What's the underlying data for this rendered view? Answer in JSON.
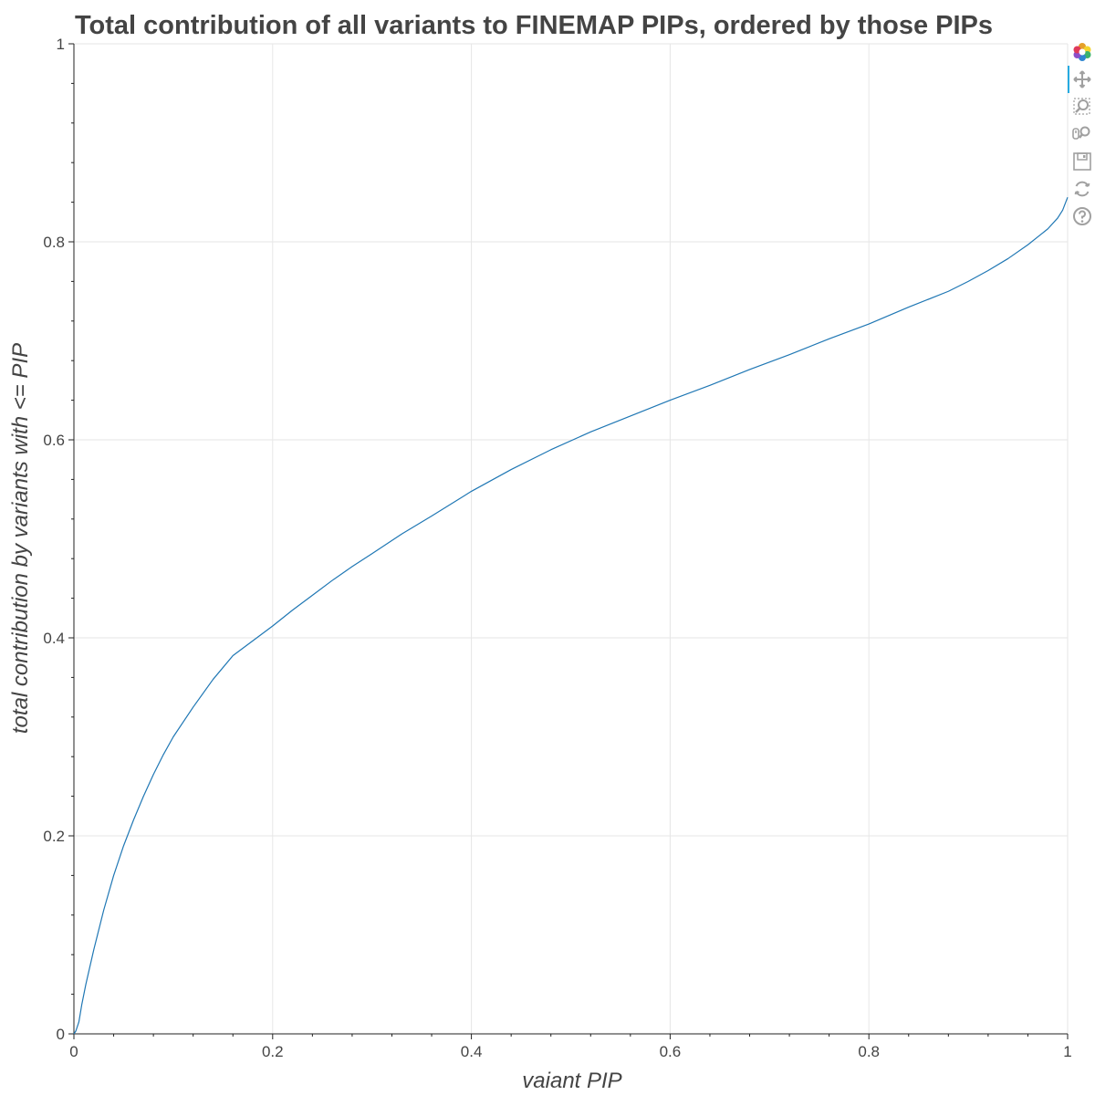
{
  "chart_data": {
    "type": "line",
    "title": "Total contribution of all variants to FINEMAP PIPs, ordered by those PIPs",
    "xlabel": "vaiant PIP",
    "ylabel": "total contribution by variants with <= PIP",
    "xlim": [
      0,
      1
    ],
    "ylim": [
      0,
      1
    ],
    "x_ticks": [
      "0",
      "0.2",
      "0.4",
      "0.6",
      "0.8",
      "1"
    ],
    "y_ticks": [
      "0",
      "0.2",
      "0.4",
      "0.6",
      "0.8",
      "1"
    ],
    "grid": true,
    "series": [
      {
        "color": "#1f77b4",
        "x": [
          0,
          0.002,
          0.005,
          0.008,
          0.012,
          0.02,
          0.03,
          0.04,
          0.05,
          0.06,
          0.07,
          0.08,
          0.09,
          0.1,
          0.12,
          0.14,
          0.16,
          0.18,
          0.2,
          0.22,
          0.24,
          0.26,
          0.28,
          0.3,
          0.33,
          0.36,
          0.4,
          0.44,
          0.48,
          0.52,
          0.56,
          0.6,
          0.64,
          0.68,
          0.72,
          0.76,
          0.8,
          0.84,
          0.88,
          0.9,
          0.92,
          0.94,
          0.96,
          0.97,
          0.98,
          0.99,
          0.995,
          1.0
        ],
        "y": [
          0,
          0.003,
          0.012,
          0.03,
          0.05,
          0.085,
          0.125,
          0.16,
          0.19,
          0.216,
          0.24,
          0.262,
          0.282,
          0.3,
          0.33,
          0.358,
          0.382,
          0.397,
          0.412,
          0.428,
          0.443,
          0.458,
          0.472,
          0.485,
          0.505,
          0.523,
          0.548,
          0.57,
          0.59,
          0.608,
          0.624,
          0.64,
          0.655,
          0.671,
          0.686,
          0.702,
          0.717,
          0.734,
          0.75,
          0.76,
          0.771,
          0.783,
          0.797,
          0.805,
          0.813,
          0.824,
          0.832,
          0.845
        ]
      }
    ]
  },
  "toolbar": {
    "icons": [
      "bokeh-logo-icon",
      "pan-icon",
      "box-zoom-icon",
      "wheel-zoom-icon",
      "save-icon",
      "reset-icon",
      "help-icon"
    ],
    "active_color": "#26aae1"
  }
}
